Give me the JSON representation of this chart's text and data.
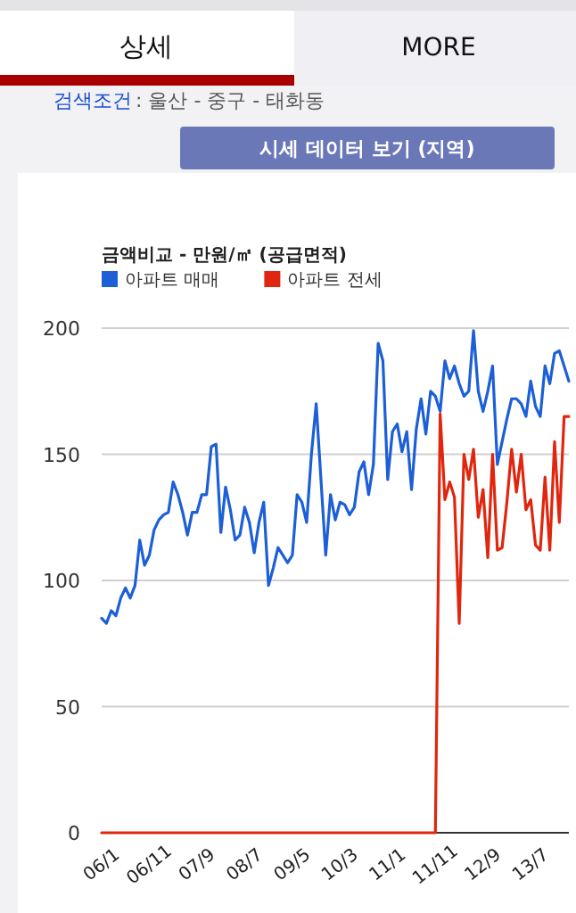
{
  "chart_data": {
    "type": "line",
    "title": "금액비교 - 만원/㎡ (공급면적)",
    "annotations": [
      "상세",
      "MORE",
      "검색조건",
      ": 울산 - 중구 - 태화동",
      "시세 데이터 보기 (지역)"
    ],
    "categories": [
      "06/1",
      null,
      null,
      null,
      null,
      null,
      null,
      null,
      null,
      null,
      "06/11",
      null,
      null,
      null,
      null,
      null,
      null,
      null,
      null,
      null,
      "07/9",
      null,
      null,
      null,
      null,
      null,
      null,
      null,
      null,
      null,
      "08/7",
      null,
      null,
      null,
      null,
      null,
      null,
      null,
      null,
      null,
      "09/5",
      null,
      null,
      null,
      null,
      null,
      null,
      null,
      null,
      null,
      "10/3",
      null,
      null,
      null,
      null,
      null,
      null,
      null,
      null,
      null,
      "11/1",
      null,
      null,
      null,
      null,
      null,
      null,
      null,
      null,
      null,
      "11/11",
      null,
      null,
      null,
      null,
      null,
      null,
      null,
      null,
      null,
      "12/9",
      null,
      null,
      null,
      null,
      null,
      null,
      null,
      null,
      null,
      "13/7",
      null,
      null,
      null,
      null,
      null,
      null,
      null,
      null
    ],
    "series": [
      {
        "name": "아파트 매매",
        "color": "#1c5fd6",
        "values": [
          85,
          83,
          88,
          86,
          93,
          97,
          93,
          98,
          116,
          106,
          110,
          120,
          124,
          126,
          127,
          139,
          134,
          127,
          118,
          127,
          127,
          134,
          134,
          153,
          154,
          119,
          137,
          128,
          116,
          118,
          129,
          123,
          111,
          123,
          131,
          98,
          105,
          113,
          110,
          107,
          110,
          134,
          131,
          123,
          150,
          170,
          140,
          110,
          134,
          124,
          131,
          130,
          126,
          129,
          143,
          147,
          134,
          146,
          194,
          187,
          140,
          159,
          162,
          151,
          159,
          136,
          160,
          172,
          158,
          175,
          173,
          167,
          187,
          180,
          185,
          178,
          173,
          175,
          199,
          175,
          167,
          175,
          185,
          146,
          155,
          164,
          172,
          172,
          170,
          165,
          179,
          169,
          165,
          185,
          178,
          190,
          191,
          185,
          179
        ]
      },
      {
        "name": "아파트 전세",
        "color": "#e0260e",
        "values": [
          0,
          0,
          0,
          0,
          0,
          0,
          0,
          0,
          0,
          0,
          0,
          0,
          0,
          0,
          0,
          0,
          0,
          0,
          0,
          0,
          0,
          0,
          0,
          0,
          0,
          0,
          0,
          0,
          0,
          0,
          0,
          0,
          0,
          0,
          0,
          0,
          0,
          0,
          0,
          0,
          0,
          0,
          0,
          0,
          0,
          0,
          0,
          0,
          0,
          0,
          0,
          0,
          0,
          0,
          0,
          0,
          0,
          0,
          0,
          0,
          0,
          0,
          0,
          0,
          0,
          0,
          0,
          0,
          0,
          0,
          0,
          166,
          132,
          139,
          133,
          83,
          150,
          140,
          152,
          125,
          136,
          109,
          150,
          112,
          113,
          131,
          152,
          135,
          150,
          128,
          132,
          114,
          112,
          141,
          112,
          155,
          123,
          165,
          165
        ]
      }
    ],
    "ylim": [
      0,
      200
    ],
    "yticks": [
      0,
      50,
      100,
      150,
      200
    ],
    "grid": "y",
    "legend": "top left"
  }
}
